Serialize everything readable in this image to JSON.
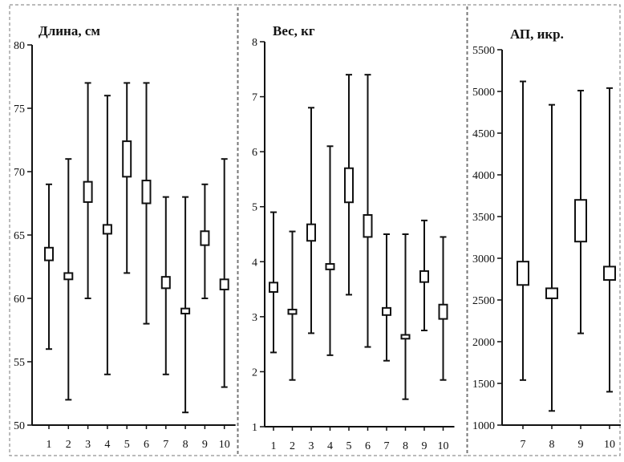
{
  "chart_data": [
    {
      "type": "boxplot",
      "title": "Длина, см",
      "ylim": [
        50,
        80
      ],
      "yticks": [
        50,
        55,
        60,
        65,
        70,
        75,
        80
      ],
      "categories": [
        "1",
        "2",
        "3",
        "4",
        "5",
        "6",
        "7",
        "8",
        "9",
        "10"
      ],
      "min": [
        56,
        52,
        60,
        54,
        62,
        58,
        54,
        51,
        60,
        53
      ],
      "box_low": [
        63,
        61.5,
        67.6,
        65.1,
        69.6,
        67.5,
        60.8,
        58.8,
        64.2,
        60.7
      ],
      "box_high": [
        64,
        62,
        69.2,
        65.8,
        72.4,
        69.3,
        61.7,
        59.2,
        65.3,
        61.5
      ],
      "max": [
        69,
        71,
        77,
        76,
        77,
        77,
        68,
        68,
        69,
        71
      ]
    },
    {
      "type": "boxplot",
      "title": "Вес, кг",
      "ylim": [
        1,
        8
      ],
      "yticks": [
        1,
        2,
        3,
        4,
        5,
        6,
        7,
        8
      ],
      "categories": [
        "1",
        "2",
        "3",
        "4",
        "5",
        "6",
        "7",
        "8",
        "9",
        "10"
      ],
      "min": [
        2.35,
        1.85,
        2.7,
        2.3,
        3.4,
        2.45,
        2.2,
        1.5,
        2.75,
        1.85
      ],
      "box_low": [
        3.45,
        3.05,
        4.38,
        3.86,
        5.08,
        4.45,
        3.03,
        2.6,
        3.63,
        2.96
      ],
      "box_high": [
        3.62,
        3.13,
        4.68,
        3.96,
        5.7,
        4.85,
        3.16,
        2.67,
        3.83,
        3.22
      ],
      "max": [
        4.9,
        4.55,
        6.8,
        6.1,
        7.4,
        7.4,
        4.5,
        4.5,
        4.75,
        4.45
      ]
    },
    {
      "type": "boxplot",
      "title": "АП, икр.",
      "ylim": [
        1000,
        5500
      ],
      "yticks": [
        1000,
        1500,
        2000,
        2500,
        3000,
        3500,
        4000,
        4500,
        5000,
        5500
      ],
      "categories": [
        "7",
        "8",
        "9",
        "10"
      ],
      "min": [
        1540,
        1170,
        2100,
        1400
      ],
      "box_low": [
        2680,
        2520,
        3200,
        2740
      ],
      "box_high": [
        2960,
        2640,
        3700,
        2900
      ],
      "max": [
        5120,
        4840,
        5010,
        5040
      ]
    }
  ]
}
